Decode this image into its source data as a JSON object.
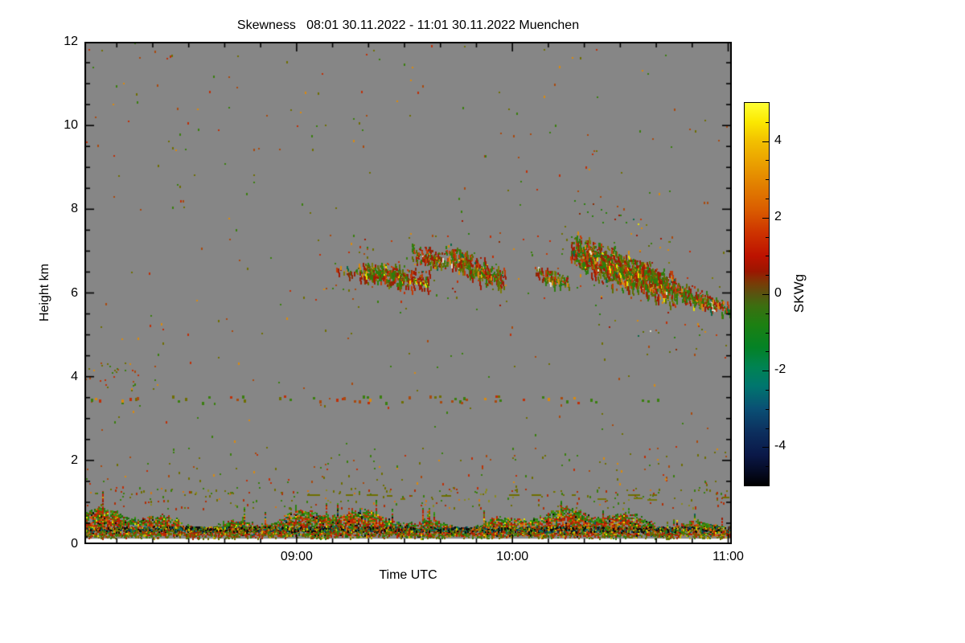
{
  "chart_data": {
    "type": "heatmap",
    "title": "Skewness   08:01 30.11.2022 - 11:01 30.11.2022 Muenchen",
    "xlabel": "Time UTC",
    "ylabel": "Height km",
    "x_axis": {
      "start_min": 481,
      "end_min": 661,
      "major_ticks": [
        {
          "t": 540,
          "label": "09:00"
        },
        {
          "t": 600,
          "label": "10:00"
        },
        {
          "t": 660,
          "label": "11:00"
        }
      ],
      "minor_step_min": 10
    },
    "y_axis": {
      "min": 0,
      "max": 12,
      "major_ticks": [
        0,
        2,
        4,
        6,
        8,
        10,
        12
      ],
      "minor_step": 0.5
    },
    "colorbar": {
      "label": "SKWg",
      "min": -5,
      "max": 5,
      "major_ticks": [
        -4,
        -2,
        0,
        2,
        4
      ],
      "minor_step": 0.5,
      "stops": [
        [
          5,
          "#ffff33"
        ],
        [
          4.5,
          "#fbe800"
        ],
        [
          4,
          "#f2c000"
        ],
        [
          3,
          "#e48800"
        ],
        [
          2.2,
          "#da5c00"
        ],
        [
          1.6,
          "#cd3300"
        ],
        [
          1.0,
          "#bd1200"
        ],
        [
          0.6,
          "#9c1600"
        ],
        [
          0.3,
          "#7a3a06"
        ],
        [
          0,
          "#585410"
        ],
        [
          -0.3,
          "#3c6e10"
        ],
        [
          -0.8,
          "#1c8012"
        ],
        [
          -1.4,
          "#048226"
        ],
        [
          -1.9,
          "#008352"
        ],
        [
          -2.4,
          "#00766e"
        ],
        [
          -3,
          "#0a4f74"
        ],
        [
          -3.6,
          "#0c2f5e"
        ],
        [
          -4.2,
          "#0a1848"
        ],
        [
          -4.7,
          "#04091e"
        ],
        [
          -5,
          "#000000"
        ]
      ]
    },
    "no_data_color": "#868686",
    "no_data_below_km": 0.13,
    "palettes": {
      "sparse": [
        [
          "#a84a10",
          0.25
        ],
        [
          "#c03008",
          0.15
        ],
        [
          "#3a7e10",
          0.25
        ],
        [
          "#6e6e02",
          0.25
        ],
        [
          "#d98a10",
          0.1
        ]
      ],
      "sparseBL": [
        [
          "#6e6e02",
          0.3
        ],
        [
          "#3a7e10",
          0.25
        ],
        [
          "#b03008",
          0.25
        ],
        [
          "#d07818",
          0.1
        ],
        [
          "#8a8a20",
          0.1
        ]
      ],
      "subband": [
        [
          "#6e6e02",
          0.45
        ],
        [
          "#3a7e10",
          0.25
        ],
        [
          "#a83008",
          0.2
        ],
        [
          "#c8b400",
          0.1
        ]
      ],
      "bl": [
        [
          "#bc2404",
          0.28
        ],
        [
          "#9c1c02",
          0.12
        ],
        [
          "#d4540a",
          0.1
        ],
        [
          "#2e8410",
          0.15
        ],
        [
          "#1e6e08",
          0.06
        ],
        [
          "#6e6e02",
          0.13
        ],
        [
          "#d0a000",
          0.04
        ],
        [
          "#101010",
          0.04
        ],
        [
          "#0a5a62",
          0.02
        ],
        [
          "#e8e400",
          0.02
        ],
        [
          "#c87818",
          0.04
        ]
      ],
      "dark": [
        [
          "#0c0c0c",
          0.26
        ],
        [
          "#123a52",
          0.1
        ],
        [
          "#0a6a6a",
          0.1
        ],
        [
          "#8a2404",
          0.14
        ],
        [
          "#c8c400",
          0.07
        ],
        [
          "#d06a08",
          0.08
        ],
        [
          "#2e7e0e",
          0.12
        ],
        [
          "#6e6e02",
          0.13
        ]
      ],
      "cloud": [
        [
          "#a01c04",
          0.24
        ],
        [
          "#c23c08",
          0.13
        ],
        [
          "#2e7e0e",
          0.22
        ],
        [
          "#5f6e04",
          0.17
        ],
        [
          "#7c7c08",
          0.08
        ],
        [
          "#d98a10",
          0.06
        ],
        [
          "#8a2c04",
          0.05
        ],
        [
          "#e8e000",
          0.02
        ],
        [
          "#0c6848",
          0.02
        ],
        [
          "#e0e0d0",
          0.01
        ]
      ],
      "green": [
        [
          "#2e8410",
          0.4
        ],
        [
          "#1e6e08",
          0.3
        ],
        [
          "#3a9a14",
          0.3
        ]
      ]
    },
    "features": [
      {
        "kind": "speckle",
        "name": "upper-sparse",
        "t0": 481,
        "t1": 661,
        "h0": 1.35,
        "h1": 12,
        "density": 0.0007,
        "palette": "sparse",
        "s": 2
      },
      {
        "kind": "speckle",
        "name": "mid-sparse",
        "t0": 481,
        "t1": 661,
        "h0": 1.35,
        "h1": 2.3,
        "density": 0.003,
        "palette": "sparse",
        "s": 2
      },
      {
        "kind": "speckle",
        "name": "cloud-halo",
        "t0": 545,
        "t1": 661,
        "h0": 5.8,
        "h1": 7.4,
        "density": 0.002,
        "palette": "sparse",
        "s": 2
      },
      {
        "kind": "speckle",
        "name": "dotted-line-3p5km",
        "t0": 481,
        "t1": 661,
        "h0": 3.38,
        "h1": 3.55,
        "density": 0.009,
        "palette": "sparse",
        "s": 3
      },
      {
        "kind": "speckle",
        "name": "left-cluster-4km",
        "t0": 481,
        "t1": 496,
        "h0": 3.7,
        "h1": 4.35,
        "density": 0.013,
        "palette": "sparse",
        "s": 2
      },
      {
        "kind": "speckle",
        "name": "above-boundary-layer",
        "t0": 481,
        "t1": 661,
        "h0": 0.85,
        "h1": 1.35,
        "density": 0.012,
        "palette": "sparseBL",
        "s": 2
      },
      {
        "kind": "dashline",
        "name": "olive-dashed-line",
        "t0": 543,
        "t1": 661,
        "h": 1.16,
        "color": "#6e6e00",
        "density": 0.6
      },
      {
        "kind": "dashline",
        "name": "olive-dashed-line-2",
        "t0": 560,
        "t1": 648,
        "h": 1.09,
        "color": "#77770a",
        "density": 0.28
      },
      {
        "kind": "blband",
        "name": "boundary-layer-band",
        "t0": 481,
        "t1": 661,
        "coverage": 0.8,
        "palette": "bl"
      },
      {
        "kind": "speckle",
        "name": "bl-dark-line",
        "t0": 481,
        "t1": 661,
        "h0": 0.3,
        "h1": 0.42,
        "density": 0.45,
        "palette": "dark",
        "s": 2
      },
      {
        "kind": "speckle",
        "name": "sub-band",
        "t0": 481,
        "t1": 661,
        "h0": 0.14,
        "h1": 0.27,
        "density": 0.1,
        "palette": "subband",
        "s": 2
      },
      {
        "kind": "cloud",
        "name": "cloud-1-tail",
        "t0": 550,
        "t1": 558,
        "hc0": 6.6,
        "hc1": 6.5,
        "th": 0.22,
        "density": 0.1
      },
      {
        "kind": "cloud",
        "name": "cloud-1",
        "t0": 557,
        "t1": 577,
        "hc0": 6.55,
        "hc1": 6.3,
        "th": 0.5,
        "density": 0.32
      },
      {
        "kind": "cloud",
        "name": "cloud-2",
        "t0": 572,
        "t1": 582,
        "hc0": 6.95,
        "hc1": 6.75,
        "th": 0.42,
        "density": 0.3
      },
      {
        "kind": "cloud",
        "name": "cloud-3",
        "t0": 581,
        "t1": 598,
        "hc0": 6.95,
        "hc1": 6.3,
        "th": 0.55,
        "density": 0.34
      },
      {
        "kind": "cloud",
        "name": "cloud-4",
        "t0": 606,
        "t1": 616,
        "hc0": 6.55,
        "hc1": 6.25,
        "th": 0.34,
        "density": 0.28
      },
      {
        "kind": "cloud",
        "name": "cloud-5",
        "t0": 616,
        "t1": 646,
        "hc0": 7.05,
        "hc1": 6.05,
        "th": 0.85,
        "density": 0.42
      },
      {
        "kind": "cloud",
        "name": "cloud-6",
        "t0": 638,
        "t1": 661,
        "hc0": 6.35,
        "hc1": 5.55,
        "th": 0.45,
        "density": 0.26
      }
    ]
  }
}
